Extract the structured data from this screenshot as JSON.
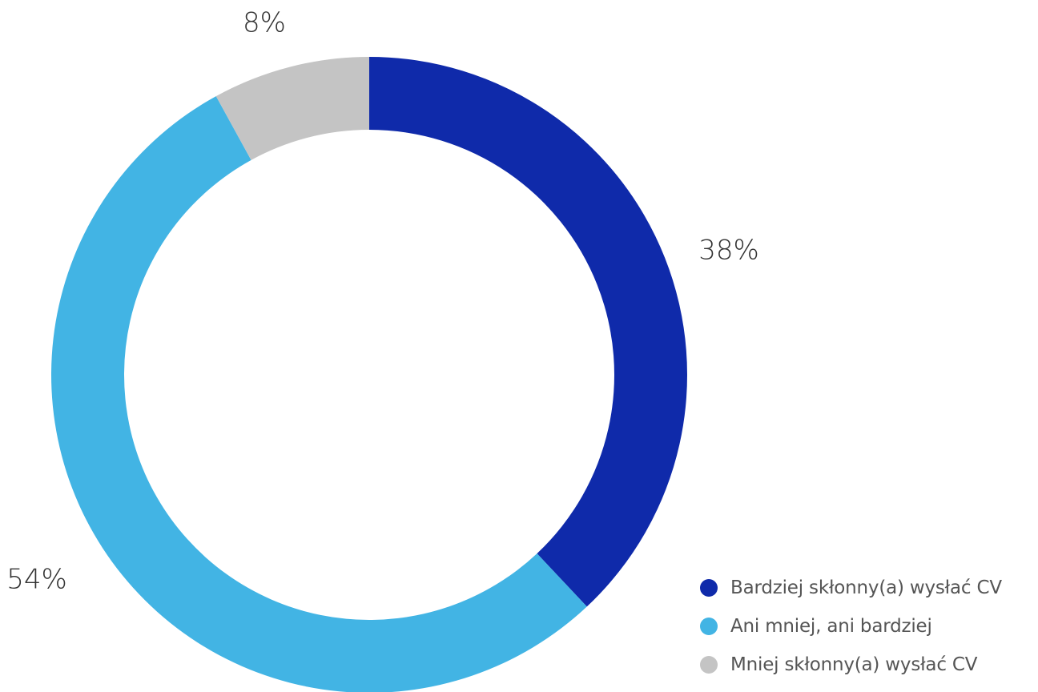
{
  "chart_data": {
    "type": "pie",
    "variant": "donut",
    "series": [
      {
        "name": "Bardziej skłonny(a) wysłać CV",
        "value": 38,
        "label": "38%",
        "color": "#0F2AAA"
      },
      {
        "name": "Ani mniej, ani bardziej",
        "value": 54,
        "label": "54%",
        "color": "#42B4E4"
      },
      {
        "name": "Mniej skłonny(a) wysłać CV",
        "value": 8,
        "label": "8%",
        "color": "#C4C4C4"
      }
    ],
    "legend_position": "bottom-right"
  }
}
